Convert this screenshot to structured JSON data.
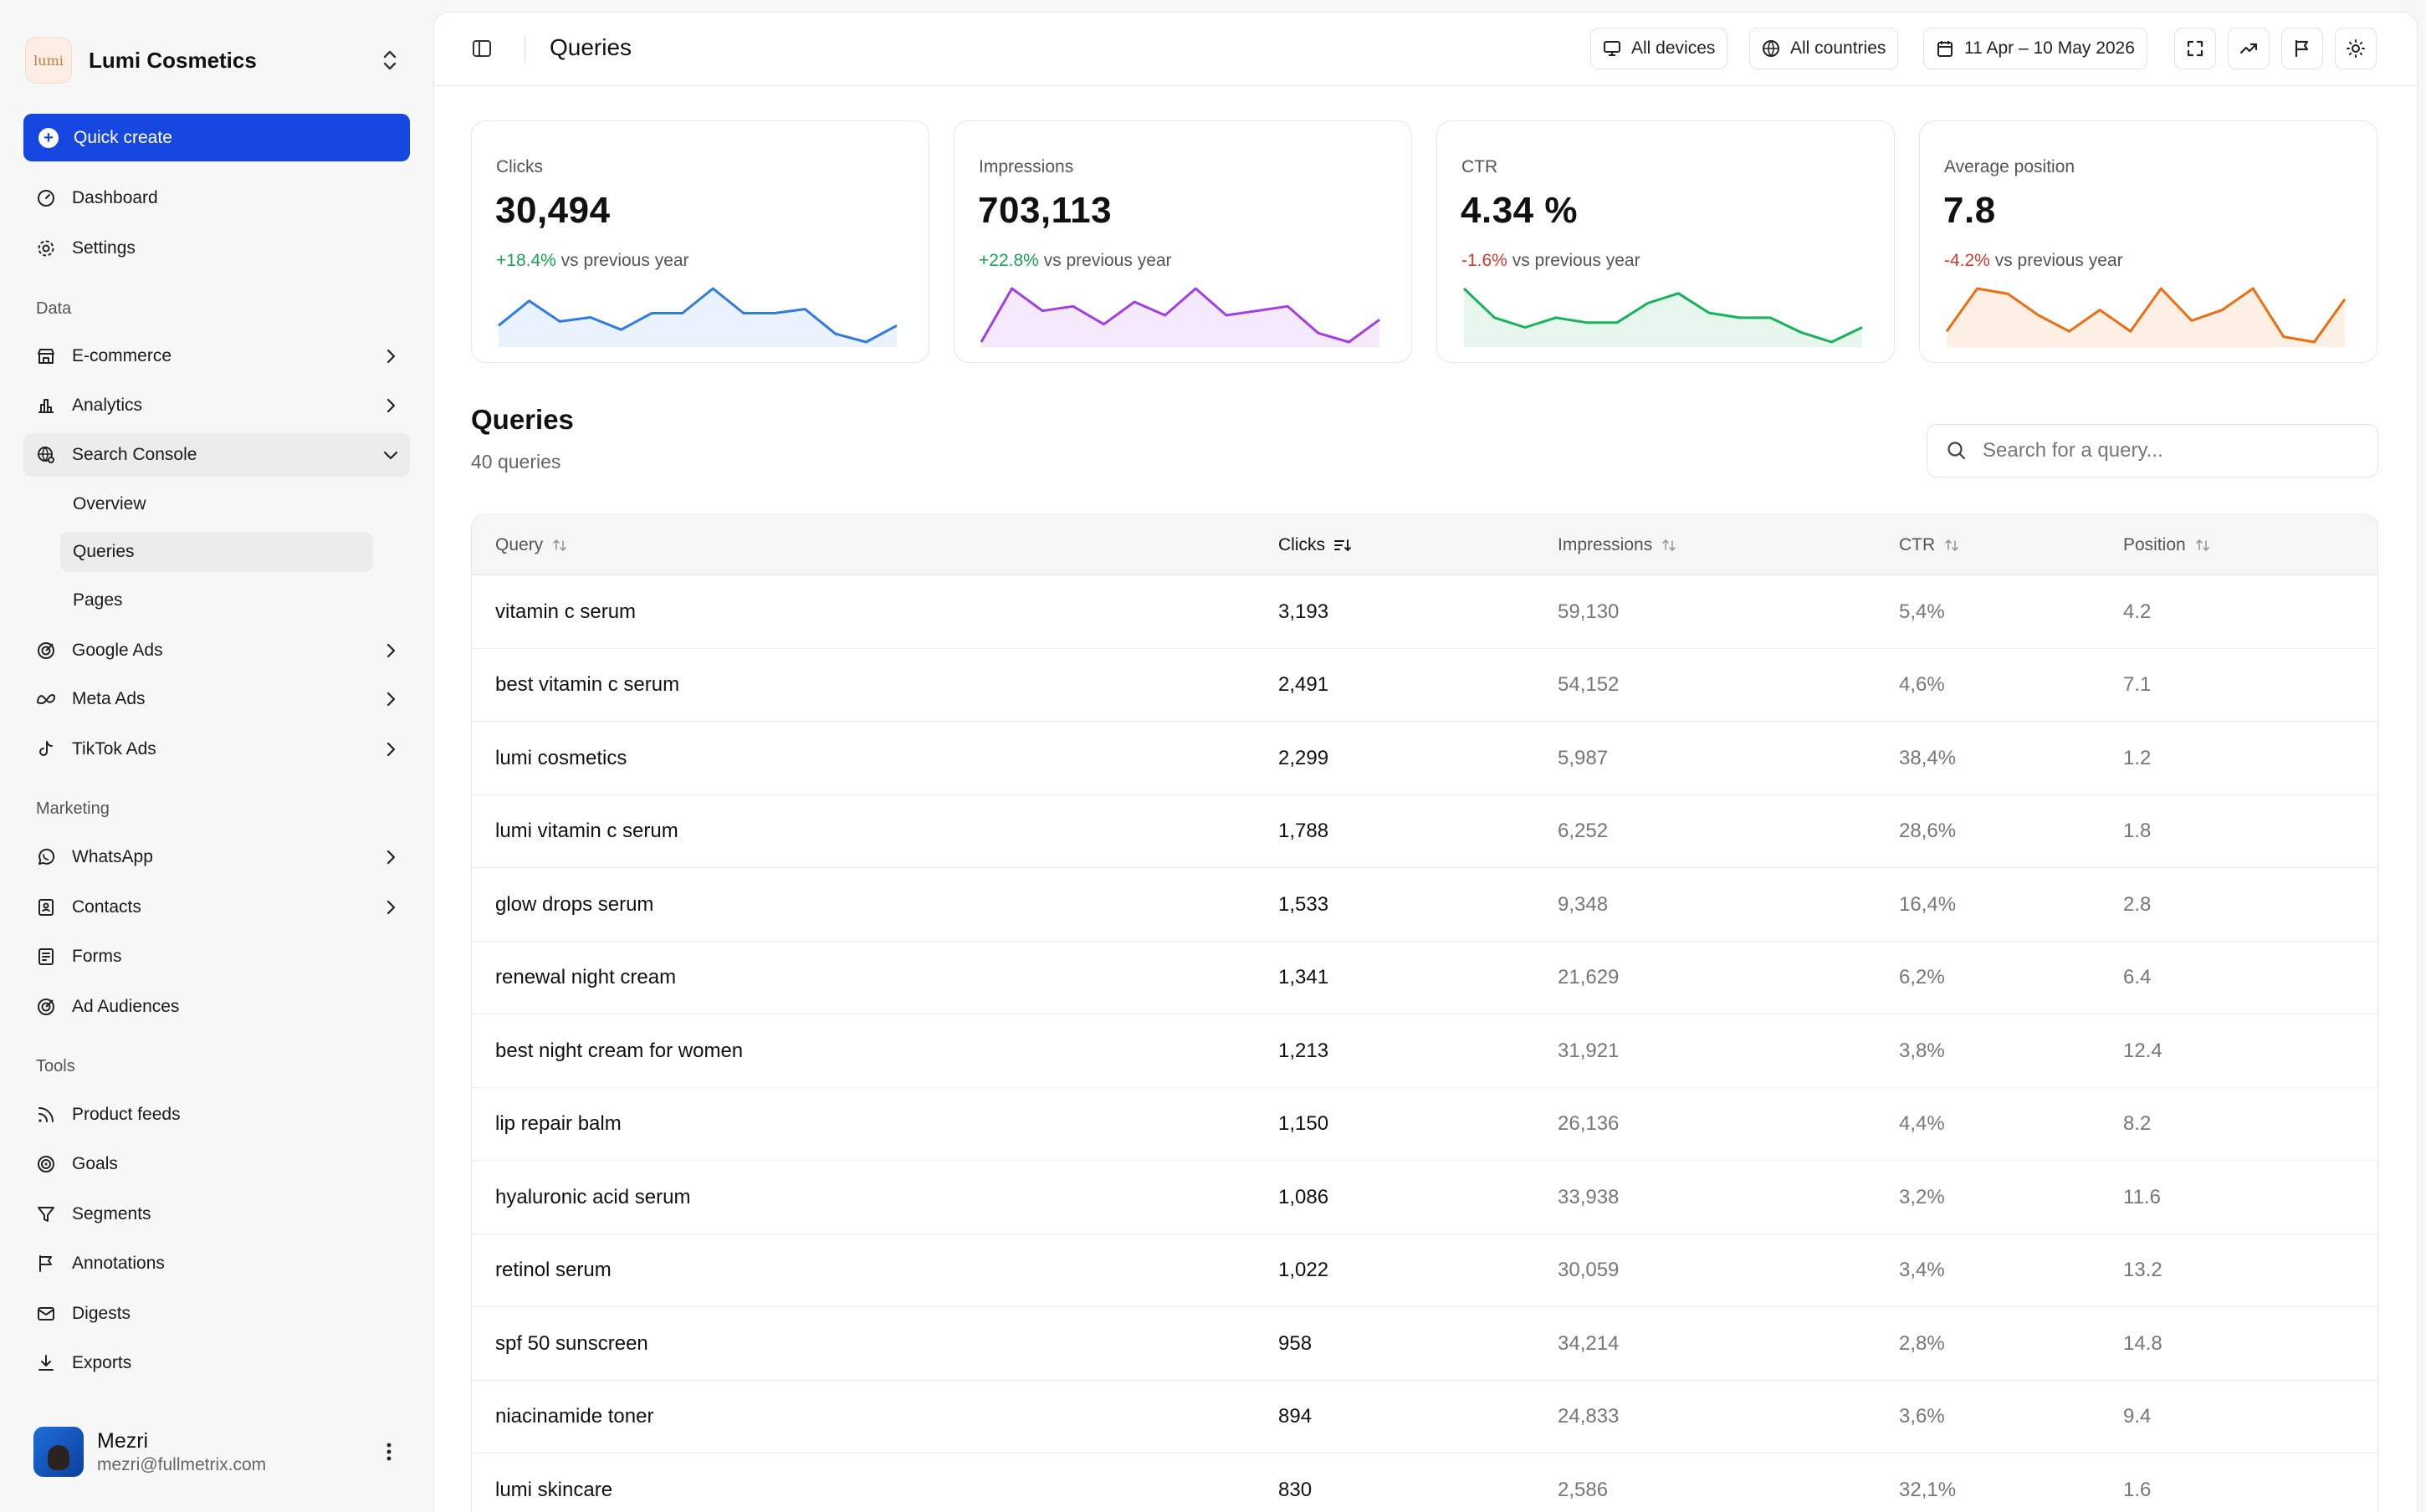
{
  "brand": {
    "name": "Lumi Cosmetics",
    "logo_text": "lumi"
  },
  "quick_create": {
    "label": "Quick create"
  },
  "nav": {
    "dashboard": "Dashboard",
    "settings": "Settings",
    "section_data": "Data",
    "ecommerce": "E-commerce",
    "analytics": "Analytics",
    "search_console": "Search Console",
    "sub_overview": "Overview",
    "sub_queries": "Queries",
    "sub_pages": "Pages",
    "google_ads": "Google Ads",
    "meta_ads": "Meta Ads",
    "tiktok_ads": "TikTok Ads",
    "section_marketing": "Marketing",
    "whatsapp": "WhatsApp",
    "contacts": "Contacts",
    "forms": "Forms",
    "ad_audiences": "Ad Audiences",
    "section_tools": "Tools",
    "product_feeds": "Product feeds",
    "goals": "Goals",
    "segments": "Segments",
    "annotations": "Annotations",
    "digests": "Digests",
    "exports": "Exports"
  },
  "user": {
    "name": "Mezri",
    "email": "mezri@fullmetrix.com"
  },
  "topbar": {
    "title": "Queries",
    "devices": "All devices",
    "countries": "All countries",
    "date_range": "11 Apr – 10 May 2026"
  },
  "kpis": [
    {
      "label": "Clicks",
      "value": "30,494",
      "delta": "+18.4%",
      "delta_suffix": "vs previous year",
      "color": "#2f7be0",
      "fill": "#eaf2fd",
      "spark": [
        5,
        11,
        6,
        7,
        4,
        8,
        8,
        14,
        8,
        8,
        9,
        3,
        1,
        5
      ]
    },
    {
      "label": "Impressions",
      "value": "703,113",
      "delta": "+22.8%",
      "delta_suffix": "vs previous year",
      "color": "#a23ee6",
      "fill": "#f5eafd",
      "spark": [
        1,
        13,
        8,
        9,
        5,
        10,
        7,
        13,
        7,
        8,
        9,
        3,
        1,
        6
      ]
    },
    {
      "label": "CTR",
      "value": "4.34 %",
      "delta": "-1.6%",
      "delta_suffix": "vs previous year",
      "color": "#15b35b",
      "fill": "#e7f7ee",
      "spark": [
        13,
        7,
        5,
        7,
        6,
        6,
        10,
        12,
        8,
        7,
        7,
        4,
        2,
        5
      ]
    },
    {
      "label": "Average position",
      "value": "7.8",
      "delta": "-4.2%",
      "delta_suffix": "vs previous year",
      "color": "#ec6d12",
      "fill": "#fdefe4",
      "spark": [
        3,
        11,
        10,
        6,
        3,
        7,
        3,
        11,
        5,
        7,
        11,
        2,
        1,
        9
      ]
    }
  ],
  "queries": {
    "title": "Queries",
    "count": "40 queries",
    "search_placeholder": "Search for a query...",
    "columns": [
      "Query",
      "Clicks",
      "Impressions",
      "CTR",
      "Position"
    ],
    "rows": [
      [
        "vitamin c serum",
        "3,193",
        "59,130",
        "5,4%",
        "4.2"
      ],
      [
        "best vitamin c serum",
        "2,491",
        "54,152",
        "4,6%",
        "7.1"
      ],
      [
        "lumi cosmetics",
        "2,299",
        "5,987",
        "38,4%",
        "1.2"
      ],
      [
        "lumi vitamin c serum",
        "1,788",
        "6,252",
        "28,6%",
        "1.8"
      ],
      [
        "glow drops serum",
        "1,533",
        "9,348",
        "16,4%",
        "2.8"
      ],
      [
        "renewal night cream",
        "1,341",
        "21,629",
        "6,2%",
        "6.4"
      ],
      [
        "best night cream for women",
        "1,213",
        "31,921",
        "3,8%",
        "12.4"
      ],
      [
        "lip repair balm",
        "1,150",
        "26,136",
        "4,4%",
        "8.2"
      ],
      [
        "hyaluronic acid serum",
        "1,086",
        "33,938",
        "3,2%",
        "11.6"
      ],
      [
        "retinol serum",
        "1,022",
        "30,059",
        "3,4%",
        "13.2"
      ],
      [
        "spf 50 sunscreen",
        "958",
        "34,214",
        "2,8%",
        "14.8"
      ],
      [
        "niacinamide toner",
        "894",
        "24,833",
        "3,6%",
        "9.4"
      ],
      [
        "lumi skincare",
        "830",
        "2,586",
        "32,1%",
        "1.6"
      ]
    ]
  }
}
